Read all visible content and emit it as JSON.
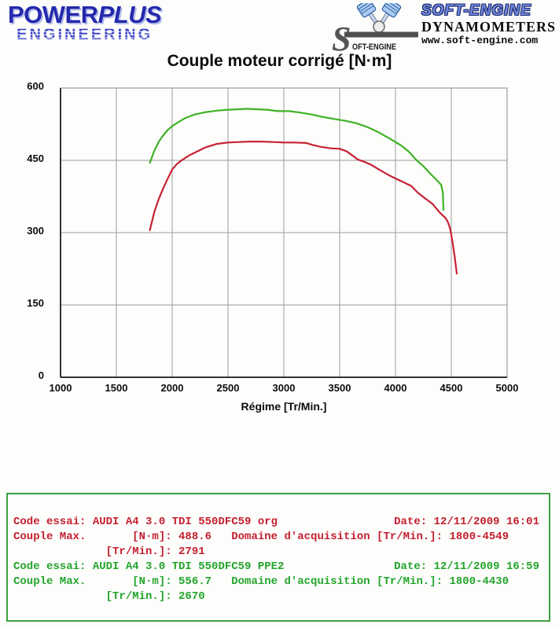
{
  "header": {
    "powerplus": {
      "power": "POWER",
      "plus": "PLUS",
      "engineering": "ENGINEERING",
      "brand_color": "#2429ad"
    },
    "soft_engine": {
      "s_letter": "S",
      "s_caption": "OFT-ENGINE",
      "name": "SOFT-ENGINE",
      "subtitle": "DYNAMOMETERS",
      "url": "www.soft-engine.com"
    }
  },
  "chart_data": {
    "type": "line",
    "title": "Couple moteur corrigé [N·m]",
    "xlabel": "Régime [Tr/Min.]",
    "ylabel": "",
    "xlim": [
      1000,
      5000
    ],
    "ylim": [
      0,
      600
    ],
    "xticks": [
      1000,
      1500,
      2000,
      2500,
      3000,
      3500,
      4000,
      4500,
      5000
    ],
    "yticks": [
      0,
      150,
      300,
      450,
      600
    ],
    "grid": true,
    "grid_color": "#9c9c9c",
    "axis_color": "#333333",
    "legend_position": "none",
    "series": [
      {
        "name": "AUDI A4 3.0 TDI 550DFC59 org",
        "color": "#c82233",
        "max_value": 488.6,
        "max_rpm": 2791,
        "domain": [
          1800,
          4549
        ],
        "points": [
          [
            1800,
            305
          ],
          [
            1840,
            343
          ],
          [
            1880,
            370
          ],
          [
            1920,
            392
          ],
          [
            1960,
            412
          ],
          [
            2000,
            431
          ],
          [
            2040,
            442
          ],
          [
            2090,
            451
          ],
          [
            2150,
            460
          ],
          [
            2220,
            468
          ],
          [
            2300,
            477
          ],
          [
            2400,
            484
          ],
          [
            2500,
            487
          ],
          [
            2600,
            488
          ],
          [
            2700,
            489
          ],
          [
            2791,
            489
          ],
          [
            2900,
            488
          ],
          [
            3000,
            487
          ],
          [
            3100,
            487
          ],
          [
            3200,
            486
          ],
          [
            3260,
            482
          ],
          [
            3330,
            478
          ],
          [
            3420,
            475
          ],
          [
            3500,
            474
          ],
          [
            3560,
            469
          ],
          [
            3610,
            461
          ],
          [
            3660,
            452
          ],
          [
            3720,
            447
          ],
          [
            3780,
            441
          ],
          [
            3860,
            430
          ],
          [
            3950,
            418
          ],
          [
            4050,
            407
          ],
          [
            4140,
            397
          ],
          [
            4200,
            383
          ],
          [
            4260,
            372
          ],
          [
            4330,
            360
          ],
          [
            4400,
            341
          ],
          [
            4450,
            330
          ],
          [
            4470,
            322
          ],
          [
            4490,
            308
          ],
          [
            4510,
            282
          ],
          [
            4530,
            250
          ],
          [
            4549,
            215
          ]
        ]
      },
      {
        "name": "AUDI A4 3.0 TDI 550DFC59 PPE2",
        "color": "#3fb226",
        "max_value": 556.7,
        "max_rpm": 2670,
        "domain": [
          1800,
          4430
        ],
        "points": [
          [
            1800,
            445
          ],
          [
            1840,
            470
          ],
          [
            1880,
            489
          ],
          [
            1920,
            502
          ],
          [
            1960,
            513
          ],
          [
            2000,
            521
          ],
          [
            2060,
            530
          ],
          [
            2120,
            538
          ],
          [
            2200,
            545
          ],
          [
            2300,
            550
          ],
          [
            2400,
            553
          ],
          [
            2500,
            555
          ],
          [
            2600,
            556
          ],
          [
            2670,
            557
          ],
          [
            2750,
            556
          ],
          [
            2850,
            555
          ],
          [
            2950,
            552
          ],
          [
            3050,
            552
          ],
          [
            3150,
            549
          ],
          [
            3250,
            545
          ],
          [
            3350,
            540
          ],
          [
            3450,
            536
          ],
          [
            3550,
            532
          ],
          [
            3650,
            527
          ],
          [
            3750,
            519
          ],
          [
            3850,
            508
          ],
          [
            3950,
            495
          ],
          [
            4050,
            481
          ],
          [
            4120,
            468
          ],
          [
            4190,
            450
          ],
          [
            4250,
            438
          ],
          [
            4310,
            423
          ],
          [
            4370,
            409
          ],
          [
            4410,
            399
          ],
          [
            4425,
            382
          ],
          [
            4430,
            347
          ]
        ]
      }
    ]
  },
  "results": {
    "border_color": "#3f9f3f",
    "tests": [
      {
        "code_left": "Code essai: AUDI A4 3.0 TDI 550DFC59 org",
        "date": "Date: 12/11/2009 16:01",
        "max_line": "Couple Max.       [N·m]: 488.6   Domaine d'acquisition [Tr/Min.]: 1800-4549",
        "rpm_line": "              [Tr/Min.]: 2791",
        "text_color": "#c41f2f"
      },
      {
        "code_left": "Code essai: AUDI A4 3.0 TDI 550DFC59 PPE2",
        "date": "Date: 12/11/2009 16:59",
        "max_line": "Couple Max.       [N·m]: 556.7   Domaine d'acquisition [Tr/Min.]: 1800-4430",
        "rpm_line": "              [Tr/Min.]: 2670",
        "text_color": "#23a42b"
      }
    ]
  }
}
